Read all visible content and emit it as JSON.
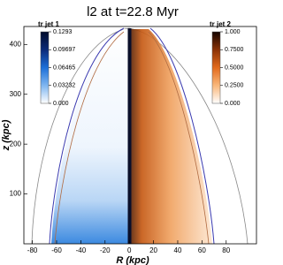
{
  "chart_data": {
    "type": "image",
    "title": "l2 at t=22.8 Myr",
    "xlabel": "R  (kpc)",
    "ylabel": "z  (kpc)",
    "xlim": [
      -87,
      105
    ],
    "ylim": [
      0,
      436
    ],
    "xticks": [
      -80,
      -60,
      -40,
      -20,
      0,
      20,
      40,
      60,
      80
    ],
    "yticks": [
      100,
      200,
      300,
      400
    ],
    "colorbars": [
      {
        "label": "tr jet 1",
        "lim": [
          0,
          0.1293
        ],
        "colors": [
          "#ffffff",
          "#7fb6f0",
          "#1c6fd8",
          "#0b2a78",
          "#000a2a"
        ],
        "ticks": [
          0.1293,
          0.09697,
          0.06465,
          0.03232,
          {
            "value": 0,
            "label": "0.000"
          }
        ]
      },
      {
        "label": "tr jet 2",
        "lim": [
          0,
          1
        ],
        "colors": [
          "#ffffff",
          "#f9b77a",
          "#e26a1c",
          "#8a3206",
          "#140400"
        ],
        "ticks": [
          {
            "value": 1,
            "label": "1.000"
          },
          {
            "value": 0.75,
            "label": "0.7500"
          },
          {
            "value": 0.5,
            "label": "0.5000"
          },
          {
            "value": 0.25,
            "label": "0.2500"
          },
          {
            "value": 0,
            "label": "0.000"
          }
        ]
      }
    ]
  }
}
